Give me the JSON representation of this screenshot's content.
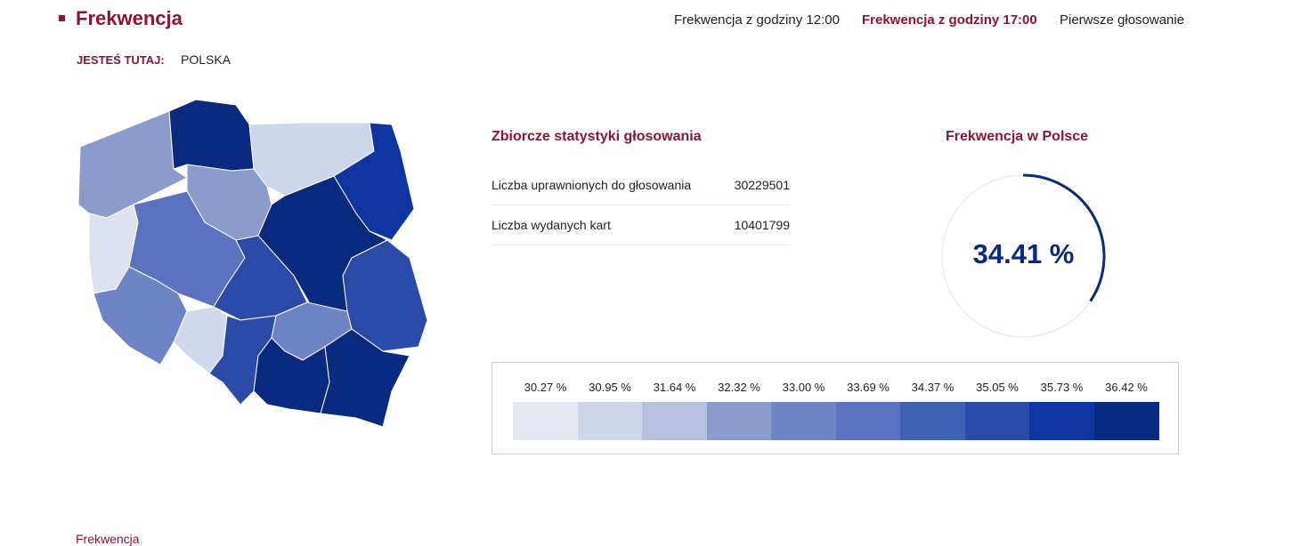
{
  "header": {
    "title": "Frekwencja",
    "nav": [
      "Frekwencja z godziny 12:00",
      "Frekwencja z godziny 17:00",
      "Pierwsze głosowanie"
    ],
    "active_nav": 1
  },
  "breadcrumb": {
    "label": "JESTEŚ TUTAJ:",
    "value": "POLSKA"
  },
  "stats": {
    "title": "Zbiorcze statystyki głosowania",
    "rows": [
      {
        "label": "Liczba uprawnionych do głosowania",
        "value": "30229501"
      },
      {
        "label": "Liczba wydanych kart",
        "value": "10401799"
      }
    ]
  },
  "gauge": {
    "title": "Frekwencja w Polsce",
    "value": "34.41 %",
    "percent": 34.41
  },
  "legend": {
    "labels": [
      "30.27 %",
      "30.95 %",
      "31.64 %",
      "32.32 %",
      "33.00 %",
      "33.69 %",
      "34.37 %",
      "35.05 %",
      "35.73 %",
      "36.42 %"
    ],
    "colors": [
      "#e6e9f4",
      "#ced6ea",
      "#b6c1e0",
      "#8a9bcc",
      "#6f84c5",
      "#5a72bf",
      "#4060b2",
      "#2c4aa8",
      "#0f35a0",
      "#0a2a80"
    ]
  },
  "map": {
    "regions": [
      {
        "name": "zachodniopomorskie",
        "color": "#8a9bcc"
      },
      {
        "name": "pomorskie",
        "color": "#0a2a80"
      },
      {
        "name": "warminsko-mazurskie",
        "color": "#cdd6ea"
      },
      {
        "name": "podlaskie",
        "color": "#0f35a0"
      },
      {
        "name": "kujawsko-pomorskie",
        "color": "#8a9bcc"
      },
      {
        "name": "lubuskie",
        "color": "#dde2f0"
      },
      {
        "name": "wielkopolskie",
        "color": "#5a72bf"
      },
      {
        "name": "mazowieckie",
        "color": "#0a2a80"
      },
      {
        "name": "lodzkie",
        "color": "#2c4aa8"
      },
      {
        "name": "lubelskie",
        "color": "#2c4aa8"
      },
      {
        "name": "dolnoslaskie",
        "color": "#6f84c5"
      },
      {
        "name": "opolskie",
        "color": "#d1daec"
      },
      {
        "name": "slaskie",
        "color": "#2c4aa8"
      },
      {
        "name": "swietokrzyskie",
        "color": "#6f84c5"
      },
      {
        "name": "malopolskie",
        "color": "#0a2a80"
      },
      {
        "name": "podkarpackie",
        "color": "#0a2a80"
      }
    ]
  },
  "footer": {
    "text": "Frekwencja"
  }
}
